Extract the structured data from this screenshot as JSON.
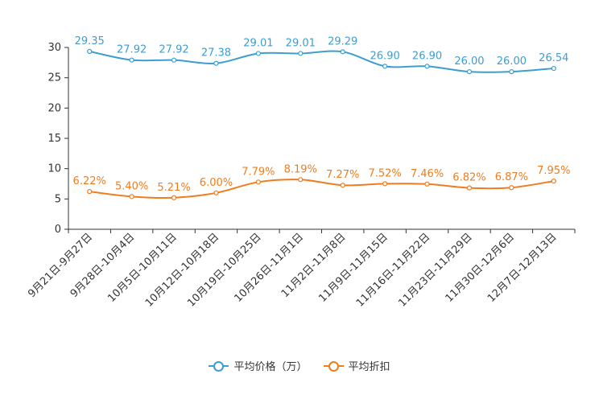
{
  "chart_data": {
    "type": "line",
    "categories": [
      "9月21日-9月27日",
      "9月28日-10月4日",
      "10月5日-10月11日",
      "10月12日-10月18日",
      "10月19日-10月25日",
      "10月26日-11月1日",
      "11月2日-11月8日",
      "11月9日-11月15日",
      "11月16日-11月22日",
      "11月23日-11月29日",
      "11月30日-12月6日",
      "12月7日-12月13日"
    ],
    "ylim": [
      0,
      30
    ],
    "yticks": [
      "0",
      "5",
      "10",
      "15",
      "20",
      "25",
      "30"
    ],
    "series": [
      {
        "name": "平均价格（万）",
        "color": "#3d9dd1",
        "values": [
          29.35,
          27.92,
          27.92,
          27.38,
          29.01,
          29.01,
          29.29,
          26.9,
          26.9,
          26.0,
          26.0,
          26.54
        ],
        "labels": [
          "29.35",
          "27.92",
          "27.92",
          "27.38",
          "29.01",
          "29.01",
          "29.29",
          "26.90",
          "26.90",
          "26.00",
          "26.00",
          "26.54"
        ]
      },
      {
        "name": "平均折扣",
        "color": "#f07c1d",
        "values": [
          6.22,
          5.4,
          5.21,
          6.0,
          7.79,
          8.19,
          7.27,
          7.52,
          7.46,
          6.82,
          6.87,
          7.95
        ],
        "labels": [
          "6.22%",
          "5.40%",
          "5.21%",
          "6.00%",
          "7.79%",
          "8.19%",
          "7.27%",
          "7.52%",
          "7.46%",
          "6.82%",
          "6.87%",
          "7.95%"
        ]
      }
    ],
    "legend_position": "bottom-center",
    "grid": false
  },
  "legend": {
    "price_label": "平均价格（万）",
    "discount_label": "平均折扣",
    "price_color": "#3d9dd1",
    "discount_color": "#f07c1d"
  }
}
